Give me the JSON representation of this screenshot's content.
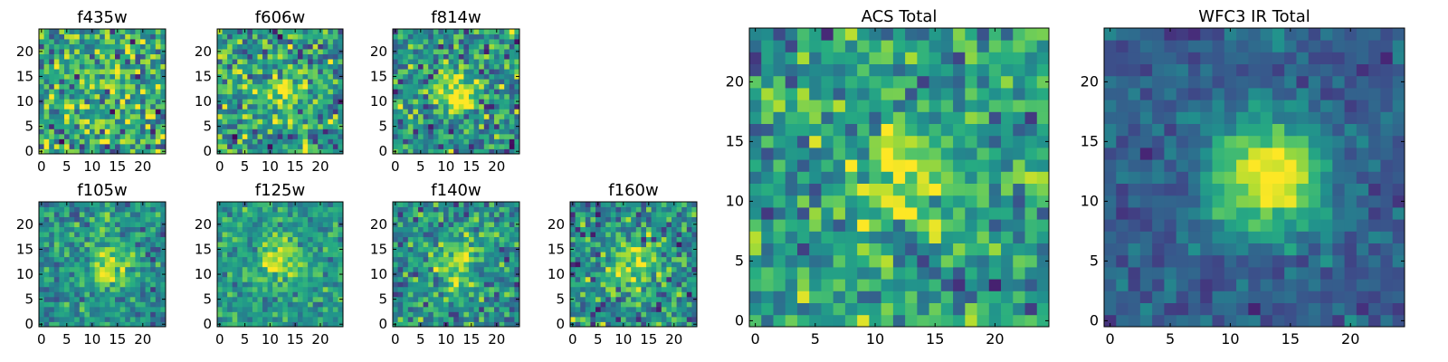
{
  "chart_data": {
    "type": "heatmap",
    "colormap": "viridis",
    "grid": false,
    "panels": [
      {
        "title": "f435w",
        "grid_size": 25,
        "xlim": [
          0,
          24
        ],
        "ylim": [
          0,
          24
        ],
        "xticks": [
          0,
          5,
          10,
          15,
          20
        ],
        "yticks": [
          0,
          5,
          10,
          15,
          20
        ],
        "source_peak": [
          13,
          12
        ],
        "source_strength": 0.05,
        "noise": 0.55,
        "base": 0.6
      },
      {
        "title": "f606w",
        "grid_size": 25,
        "xlim": [
          0,
          24
        ],
        "ylim": [
          0,
          24
        ],
        "xticks": [
          0,
          5,
          10,
          15,
          20
        ],
        "yticks": [
          0,
          5,
          10,
          15,
          20
        ],
        "source_peak": [
          12,
          12
        ],
        "source_strength": 0.3,
        "noise": 0.5,
        "base": 0.55
      },
      {
        "title": "f814w",
        "grid_size": 25,
        "xlim": [
          0,
          24
        ],
        "ylim": [
          0,
          24
        ],
        "xticks": [
          0,
          5,
          10,
          15,
          20
        ],
        "yticks": [
          0,
          5,
          10,
          15,
          20
        ],
        "source_peak": [
          12,
          12
        ],
        "source_strength": 0.45,
        "noise": 0.5,
        "base": 0.5
      },
      {
        "title": "f105w",
        "grid_size": 25,
        "xlim": [
          0,
          24
        ],
        "ylim": [
          0,
          24
        ],
        "xticks": [
          0,
          5,
          10,
          15,
          20
        ],
        "yticks": [
          0,
          5,
          10,
          15,
          20
        ],
        "source_peak": [
          13,
          12
        ],
        "source_strength": 0.4,
        "noise": 0.35,
        "base": 0.5
      },
      {
        "title": "f125w",
        "grid_size": 25,
        "xlim": [
          0,
          24
        ],
        "ylim": [
          0,
          24
        ],
        "xticks": [
          0,
          5,
          10,
          15,
          20
        ],
        "yticks": [
          0,
          5,
          10,
          15,
          20
        ],
        "source_peak": [
          12,
          13
        ],
        "source_strength": 0.35,
        "noise": 0.3,
        "base": 0.55
      },
      {
        "title": "f140w",
        "grid_size": 25,
        "xlim": [
          0,
          24
        ],
        "ylim": [
          0,
          24
        ],
        "xticks": [
          0,
          5,
          10,
          15,
          20
        ],
        "yticks": [
          0,
          5,
          10,
          15,
          20
        ],
        "source_peak": [
          12,
          12
        ],
        "source_strength": 0.35,
        "noise": 0.4,
        "base": 0.5
      },
      {
        "title": "f160w",
        "grid_size": 25,
        "xlim": [
          0,
          24
        ],
        "ylim": [
          0,
          24
        ],
        "xticks": [
          0,
          5,
          10,
          15,
          20
        ],
        "yticks": [
          0,
          5,
          10,
          15,
          20
        ],
        "source_peak": [
          12,
          12
        ],
        "source_strength": 0.4,
        "noise": 0.45,
        "base": 0.5
      },
      {
        "title": "ACS Total",
        "grid_size": 25,
        "xlim": [
          0,
          24
        ],
        "ylim": [
          0,
          24
        ],
        "xticks": [
          0,
          5,
          10,
          15,
          20
        ],
        "yticks": [
          0,
          5,
          10,
          15,
          20
        ],
        "source_peak": [
          12,
          12
        ],
        "source_strength": 0.35,
        "noise": 0.4,
        "base": 0.55
      },
      {
        "title": "WFC3 IR Total",
        "grid_size": 25,
        "xlim": [
          0,
          24
        ],
        "ylim": [
          0,
          24
        ],
        "xticks": [
          0,
          5,
          10,
          15,
          20
        ],
        "yticks": [
          0,
          5,
          10,
          15,
          20
        ],
        "source_peak": [
          13,
          12
        ],
        "source_strength": 0.75,
        "noise": 0.2,
        "base": 0.3
      }
    ]
  }
}
